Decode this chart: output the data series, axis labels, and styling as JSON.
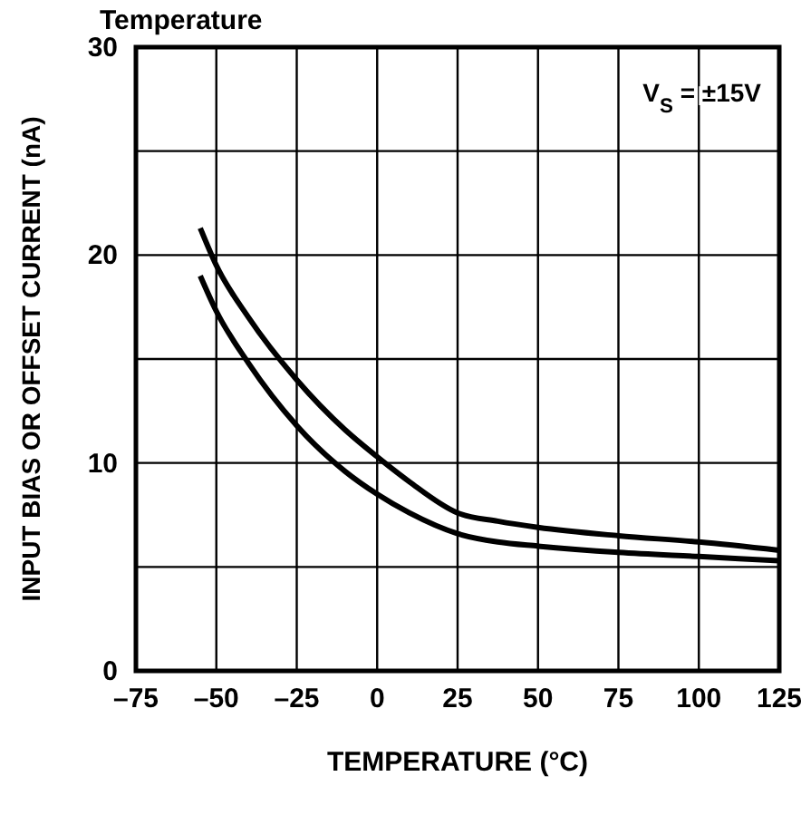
{
  "chart_data": {
    "type": "line",
    "title": "Temperature",
    "xlabel": "TEMPERATURE (°C)",
    "ylabel": "INPUT BIAS OR OFFSET CURRENT (nA)",
    "annotations": [
      "V$_{S}$ = ±15V"
    ],
    "xlim": [
      -75,
      125
    ],
    "xticks": [
      {
        "value": -75,
        "label": "–75"
      },
      {
        "value": -50,
        "label": "–50"
      },
      {
        "value": -25,
        "label": "–25"
      },
      0,
      25,
      50,
      75,
      100,
      125
    ],
    "ylim": [
      0,
      30
    ],
    "yticks": [
      0,
      {
        "value": 5,
        "label": null
      },
      10,
      {
        "value": 15,
        "label": null
      },
      20,
      {
        "value": 25,
        "label": null
      },
      30
    ],
    "grid": true,
    "line_style": "solid",
    "marker": "none",
    "series": [
      {
        "color": "#000000",
        "x": [
          -55,
          -50,
          -40,
          -25,
          -10,
          0,
          10,
          25,
          37.5,
          50,
          75,
          100,
          125
        ],
        "values": [
          21.3,
          19.5,
          17,
          14,
          11.6,
          10.3,
          9.1,
          7.6,
          7.2,
          6.9,
          6.5,
          6.2,
          5.8
        ]
      },
      {
        "color": "#000000",
        "x": [
          -55,
          -50,
          -40,
          -25,
          -10,
          0,
          10,
          25,
          37.5,
          50,
          75,
          100,
          125
        ],
        "values": [
          19,
          17.3,
          14.8,
          11.8,
          9.6,
          8.5,
          7.6,
          6.6,
          6.2,
          6.0,
          5.7,
          5.5,
          5.3
        ]
      }
    ]
  }
}
